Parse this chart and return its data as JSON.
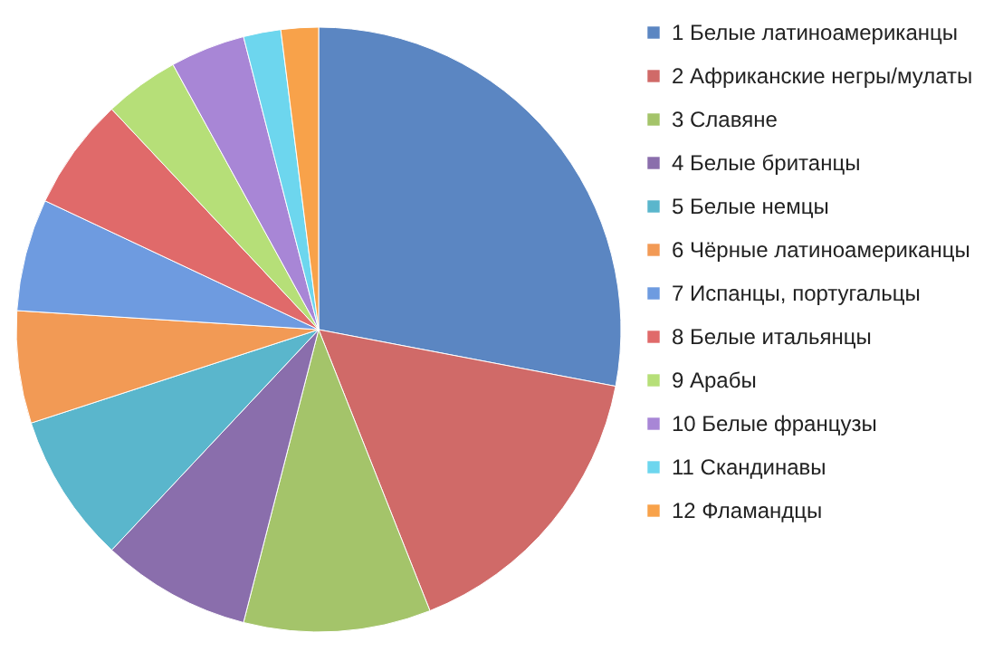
{
  "chart_data": {
    "type": "pie",
    "categories": [
      "1 Белые латиноамериканцы",
      "2 Африканские негры/мулаты",
      "3 Славяне",
      "4 Белые британцы",
      "5 Белые немцы",
      "6 Чёрные латиноамериканцы",
      "7 Испанцы, португальцы",
      "8 Белые итальянцы",
      "9 Арабы",
      "10 Белые французы",
      "11 Скандинавы",
      "12 Фламандцы"
    ],
    "values": [
      28,
      16,
      10,
      8,
      8,
      6,
      6,
      6,
      4,
      4,
      2,
      2
    ],
    "colors": [
      "#5b86c2",
      "#d06a68",
      "#a4c46a",
      "#8a6eac",
      "#5ab6cc",
      "#f29a55",
      "#6e9be0",
      "#e06a6a",
      "#b6df78",
      "#a886d6",
      "#6dd6ee",
      "#f8a24a"
    ],
    "legend": "right"
  }
}
